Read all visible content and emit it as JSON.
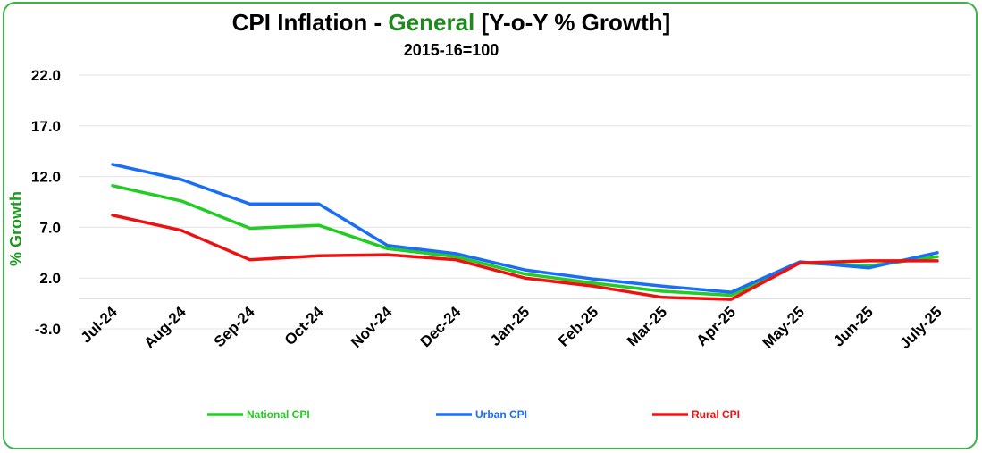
{
  "chart_data": {
    "type": "line",
    "title": {
      "pre": "CPI Inflation - ",
      "highlight": "General",
      "post": " [Y-o-Y % Growth]"
    },
    "subtitle": "2015-16=100",
    "ylabel": "% Growth",
    "xlabel": "",
    "categories": [
      "Jul-24",
      "Aug-24",
      "Sep-24",
      "Oct-24",
      "Nov-24",
      "Dec-24",
      "Jan-25",
      "Feb-25",
      "Mar-25",
      "Apr-25",
      "May-25",
      "Jun-25",
      "July-25"
    ],
    "ylim": [
      -3.0,
      22.0
    ],
    "yticks": [
      -3.0,
      2.0,
      7.0,
      12.0,
      17.0,
      22.0
    ],
    "ytick_labels": [
      "-3.0",
      "2.0",
      "7.0",
      "12.0",
      "17.0",
      "22.0"
    ],
    "grid": true,
    "legend_position": "bottom",
    "series": [
      {
        "name": "National CPI",
        "color": "#22cc22",
        "values": [
          11.1,
          9.6,
          6.9,
          7.2,
          4.9,
          4.1,
          2.4,
          1.5,
          0.7,
          0.3,
          3.5,
          3.2,
          4.1
        ]
      },
      {
        "name": "Urban CPI",
        "color": "#1a6ef5",
        "values": [
          13.2,
          11.7,
          9.3,
          9.3,
          5.2,
          4.4,
          2.8,
          1.9,
          1.2,
          0.6,
          3.6,
          3.0,
          4.5
        ]
      },
      {
        "name": "Rural CPI",
        "color": "#ee1111",
        "values": [
          8.2,
          6.7,
          3.8,
          4.2,
          4.3,
          3.8,
          2.0,
          1.2,
          0.1,
          -0.1,
          3.5,
          3.7,
          3.7
        ]
      }
    ]
  }
}
